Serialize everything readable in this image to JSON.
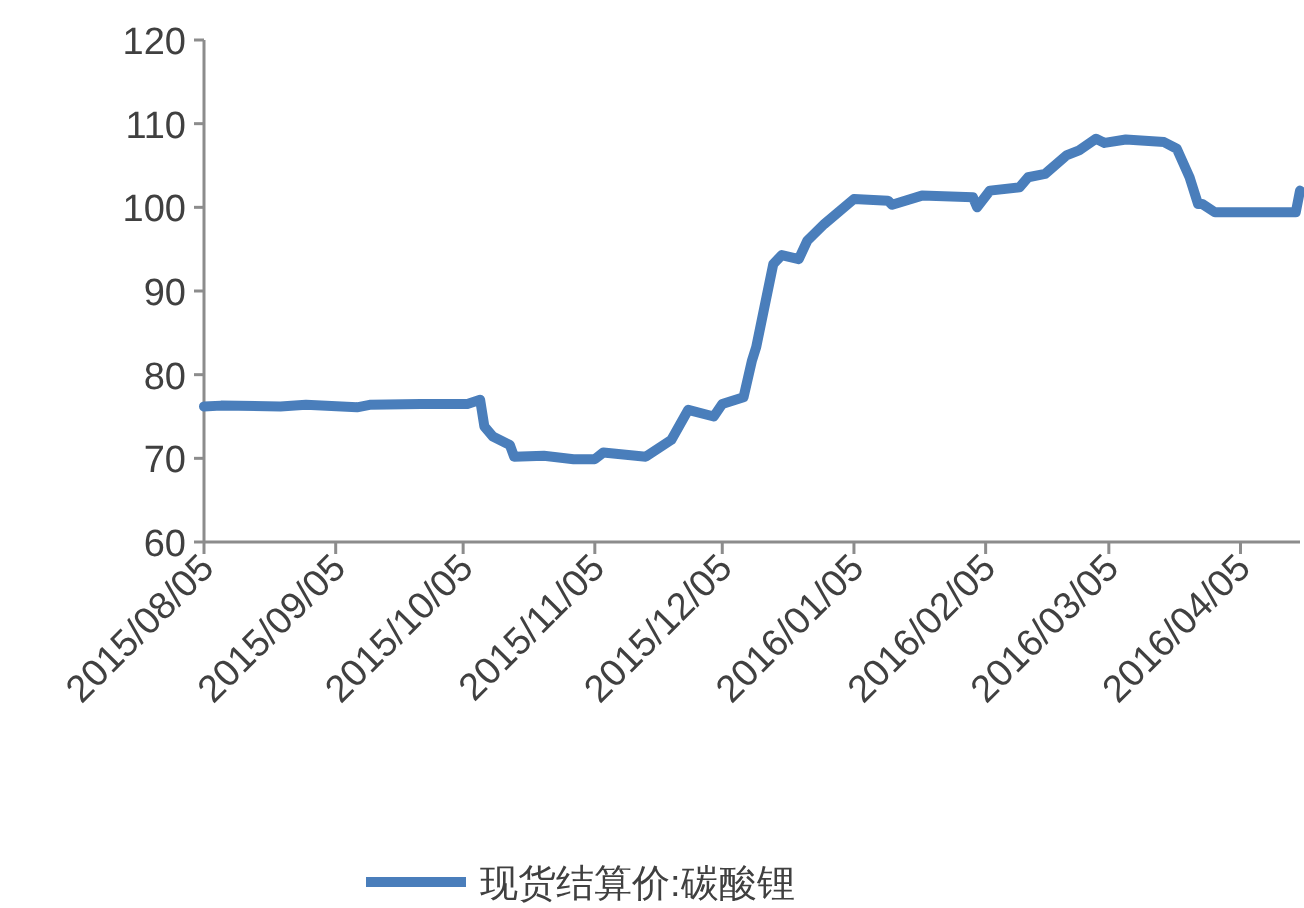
{
  "chart_data": {
    "type": "line",
    "x": [
      "2015-08-05",
      "2015-08-09",
      "2015-08-23",
      "2015-08-29",
      "2015-09-10",
      "2015-09-13",
      "2015-09-25",
      "2015-10-06",
      "2015-10-09",
      "2015-10-10",
      "2015-10-12",
      "2015-10-16",
      "2015-10-17",
      "2015-10-24",
      "2015-10-31",
      "2015-11-05",
      "2015-11-07",
      "2015-11-17",
      "2015-11-23",
      "2015-11-27",
      "2015-12-03",
      "2015-12-05",
      "2015-12-10",
      "2015-12-12",
      "2015-12-13",
      "2015-12-17",
      "2015-12-19",
      "2015-12-23",
      "2015-12-25",
      "2015-12-29",
      "2016-01-05",
      "2016-01-13",
      "2016-01-14",
      "2016-01-21",
      "2016-02-02",
      "2016-02-03",
      "2016-02-06",
      "2016-02-13",
      "2016-02-15",
      "2016-02-19",
      "2016-02-24",
      "2016-02-27",
      "2016-03-02",
      "2016-03-04",
      "2016-03-09",
      "2016-03-18",
      "2016-03-21",
      "2016-03-24",
      "2016-03-26",
      "2016-03-27",
      "2016-03-30",
      "2016-04-18",
      "2016-04-19"
    ],
    "series": [
      {
        "name": "现货结算价:碳酸锂",
        "color": "#4a7ebb",
        "values": [
          76.2,
          76.3,
          76.2,
          76.4,
          76.1,
          76.4,
          76.5,
          76.5,
          77.0,
          73.8,
          72.6,
          71.6,
          70.2,
          70.3,
          69.9,
          69.9,
          70.7,
          70.2,
          72.2,
          75.8,
          75.0,
          76.5,
          77.3,
          81.7,
          83.3,
          93.2,
          94.3,
          93.8,
          96.0,
          98.0,
          101.0,
          100.8,
          100.3,
          101.4,
          101.2,
          100.0,
          102.0,
          102.4,
          103.6,
          104.0,
          106.2,
          106.8,
          108.2,
          107.7,
          108.1,
          107.8,
          107.0,
          103.6,
          100.4,
          100.4,
          99.4,
          99.4,
          102.0
        ]
      }
    ],
    "xlim": [
      "2015-08-05",
      "2016-04-19"
    ],
    "xticks": [
      {
        "value": "2015-08-05",
        "label": "2015/08/05"
      },
      {
        "value": "2015-09-05",
        "label": "2015/09/05"
      },
      {
        "value": "2015-10-05",
        "label": "2015/10/05"
      },
      {
        "value": "2015-11-05",
        "label": "2015/11/05"
      },
      {
        "value": "2015-12-05",
        "label": "2015/12/05"
      },
      {
        "value": "2016-01-05",
        "label": "2016/01/05"
      },
      {
        "value": "2016-02-05",
        "label": "2016/02/05"
      },
      {
        "value": "2016-03-05",
        "label": "2016/03/05"
      },
      {
        "value": "2016-04-05",
        "label": "2016/04/05"
      }
    ],
    "ylim": [
      60,
      120
    ],
    "yticks": [
      60,
      70,
      80,
      90,
      100,
      110,
      120
    ],
    "grid": false,
    "legend": "bottom",
    "line_style": "solid",
    "marker": "none"
  }
}
